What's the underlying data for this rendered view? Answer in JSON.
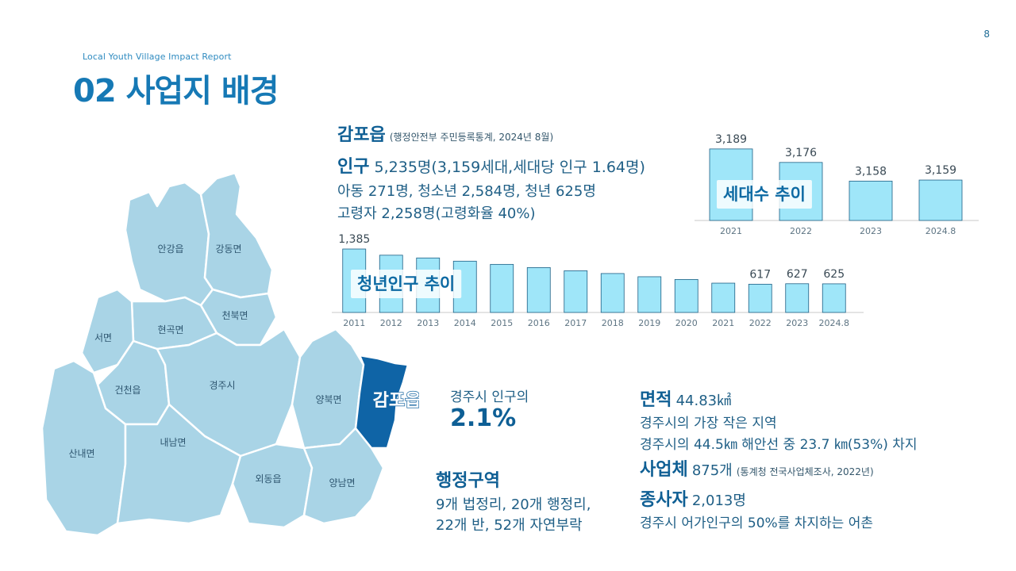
{
  "header": {
    "page_number": "8",
    "subtitle": "Local Youth Village Impact Report",
    "title": "02 사업지 배경"
  },
  "summary": {
    "town": "감포읍",
    "source": "(행정안전부 주민등록통계, 2024년 8월)",
    "population_key": "인구",
    "population_value": "5,235명(3,159세대,세대당 인구 1.64명)",
    "line2": "아동 271명, 청소년 2,584명, 청년 625명",
    "line3": "고령자 2,258명(고령화율 40%)"
  },
  "map": {
    "regions": [
      "안강읍",
      "강동면",
      "천북면",
      "현곡면",
      "서면",
      "건천읍",
      "경주시",
      "양북면",
      "산내면",
      "내남면",
      "외동읍",
      "양남면"
    ],
    "highlight": "감포읍",
    "highlight_color": "#0f64a6",
    "region_color": "#a9d4e6"
  },
  "share": {
    "label": "경주시 인구의",
    "value": "2.1%"
  },
  "admin": {
    "key": "행정구역",
    "line1": "9개 법정리, 20개 행정리,",
    "line2": "22개 반, 52개 자연부락"
  },
  "facts": {
    "area_key": "면적",
    "area_value": "44.83㎢",
    "area_line1": "경주시의 가장 작은 지역",
    "area_line2": "경주시의 44.5㎞ 해안선 중 23.7 ㎞(53%) 차지",
    "business_key": "사업체",
    "business_value": "875개",
    "business_note": "(통계청 전국사업체조사, 2022년)",
    "workers_key": "종사자",
    "workers_value": "2,013명",
    "workers_line": "경주시 어가인구의 50%를 차지하는 어촌"
  },
  "chart_data": [
    {
      "type": "bar",
      "title": "세대수 추이",
      "categories": [
        "2021",
        "2022",
        "2023",
        "2024.8"
      ],
      "values": [
        3189,
        3176,
        3158,
        3159
      ],
      "data_labels": [
        "3,189",
        "3,176",
        "3,158",
        "3,159"
      ],
      "ylim": [
        3120,
        3195
      ],
      "bar_color": "#9fe6f9",
      "bar_stroke": "#1d5f84"
    },
    {
      "type": "bar",
      "title": "청년인구 추이",
      "categories": [
        "2011",
        "2012",
        "2013",
        "2014",
        "2015",
        "2016",
        "2017",
        "2018",
        "2019",
        "2020",
        "2021",
        "2022",
        "2023",
        "2024.8"
      ],
      "values": [
        1385,
        1250,
        1190,
        1120,
        1050,
        980,
        910,
        850,
        780,
        720,
        640,
        617,
        627,
        625
      ],
      "data_labels": [
        "1,385",
        "",
        "",
        "",
        "",
        "",
        "",
        "",
        "",
        "",
        "",
        "617",
        "627",
        "625"
      ],
      "ylim": [
        0,
        1385
      ],
      "bar_color": "#9fe6f9",
      "bar_stroke": "#1d5f84"
    }
  ]
}
